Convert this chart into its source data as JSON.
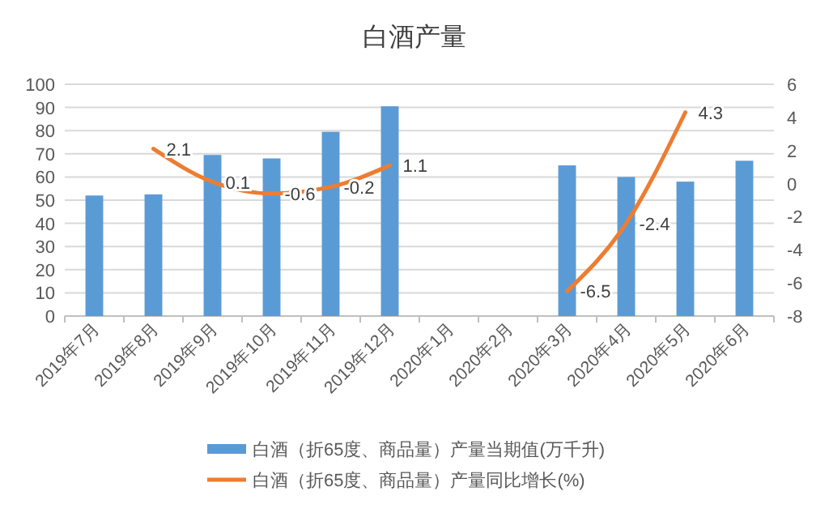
{
  "chart_data": {
    "type": "bar",
    "title": "白酒产量",
    "categories": [
      "2019年7月",
      "2019年8月",
      "2019年9月",
      "2019年10月",
      "2019年11月",
      "2019年12月",
      "2020年1月",
      "2020年2月",
      "2020年3月",
      "2020年4月",
      "2020年5月",
      "2020年6月"
    ],
    "series": [
      {
        "name": "白酒（折65度、商品量）产量当期值(万千升)",
        "color": "#5b9bd5",
        "values": [
          52,
          52.5,
          69.5,
          68,
          79.5,
          90.5,
          null,
          null,
          65,
          60,
          58,
          67
        ]
      },
      {
        "name": "白酒（折65度、商品量）产量同比增长(%)",
        "type": "line",
        "axis": "y2",
        "color": "#ed7d31",
        "values": [
          null,
          2.1,
          0.1,
          -0.6,
          -0.2,
          1.1,
          null,
          null,
          -6.5,
          -2.4,
          4.3,
          null
        ],
        "value_labels": [
          null,
          "2.1",
          "0.1",
          "-0.6",
          "-0.2",
          "1.1",
          null,
          null,
          "-6.5",
          "-2.4",
          "4.3",
          null
        ]
      }
    ],
    "ylim": [
      0,
      100
    ],
    "yticks": [
      0,
      10,
      20,
      30,
      40,
      50,
      60,
      70,
      80,
      90,
      100
    ],
    "y2lim": [
      -8,
      6
    ],
    "y2ticks": [
      -8,
      -6,
      -4,
      -2,
      0,
      2,
      4,
      6
    ],
    "grid": "y",
    "legend": "bottom",
    "marker": "none"
  }
}
